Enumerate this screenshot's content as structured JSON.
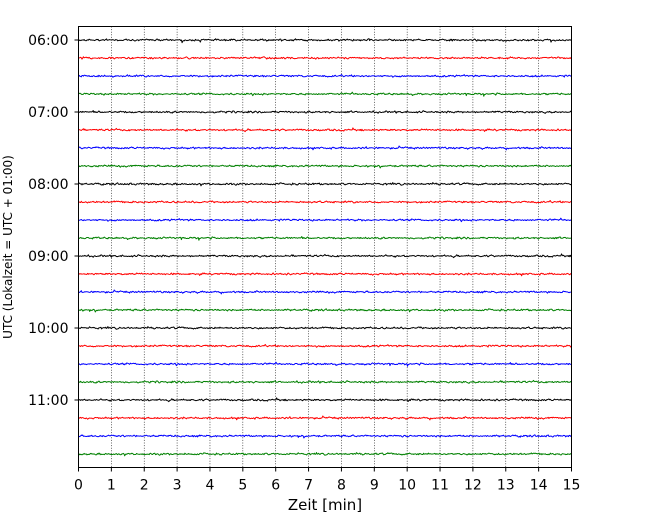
{
  "chart_data": {
    "type": "line",
    "subtype": "helicorder",
    "xlabel": "Zeit  [min]",
    "ylabel": "UTC (Lokalzeit = UTC + 01:00)",
    "xlim": [
      0,
      15
    ],
    "x_ticks": [
      0,
      1,
      2,
      3,
      4,
      5,
      6,
      7,
      8,
      9,
      10,
      11,
      12,
      13,
      14,
      15
    ],
    "y_tick_labels": [
      "06:00",
      "07:00",
      "08:00",
      "09:00",
      "10:00",
      "11:00"
    ],
    "grid": "x",
    "trace_colors": [
      "#000000",
      "#ff0000",
      "#0000ff",
      "#008000"
    ],
    "traces": [
      {
        "start": "06:00",
        "color": "#000000"
      },
      {
        "start": "06:15",
        "color": "#ff0000"
      },
      {
        "start": "06:30",
        "color": "#0000ff"
      },
      {
        "start": "06:45",
        "color": "#008000"
      },
      {
        "start": "07:00",
        "color": "#000000"
      },
      {
        "start": "07:15",
        "color": "#ff0000"
      },
      {
        "start": "07:30",
        "color": "#0000ff"
      },
      {
        "start": "07:45",
        "color": "#008000"
      },
      {
        "start": "08:00",
        "color": "#000000"
      },
      {
        "start": "08:15",
        "color": "#ff0000"
      },
      {
        "start": "08:30",
        "color": "#0000ff"
      },
      {
        "start": "08:45",
        "color": "#008000"
      },
      {
        "start": "09:00",
        "color": "#000000"
      },
      {
        "start": "09:15",
        "color": "#ff0000"
      },
      {
        "start": "09:30",
        "color": "#0000ff"
      },
      {
        "start": "09:45",
        "color": "#008000"
      },
      {
        "start": "10:00",
        "color": "#000000"
      },
      {
        "start": "10:15",
        "color": "#ff0000"
      },
      {
        "start": "10:30",
        "color": "#0000ff"
      },
      {
        "start": "10:45",
        "color": "#008000"
      },
      {
        "start": "11:00",
        "color": "#000000"
      },
      {
        "start": "11:15",
        "color": "#ff0000"
      },
      {
        "start": "11:30",
        "color": "#0000ff"
      },
      {
        "start": "11:45",
        "color": "#008000"
      }
    ]
  }
}
